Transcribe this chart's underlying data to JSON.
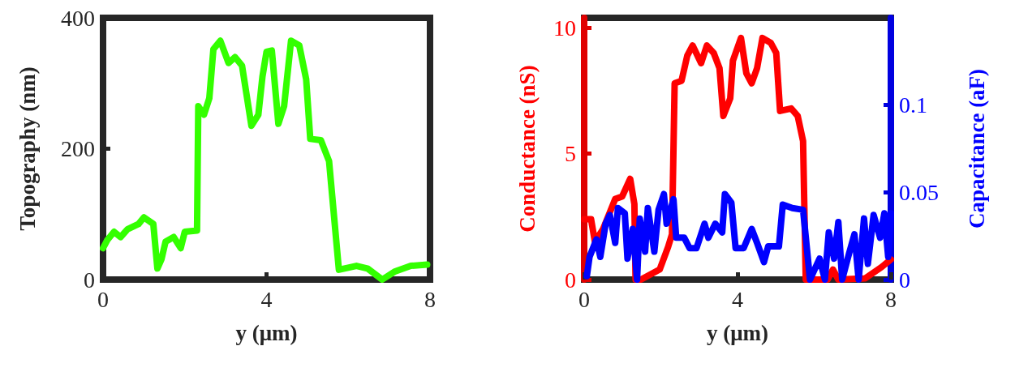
{
  "chart_data": [
    {
      "type": "line",
      "xlabel": "y (μm)",
      "ylabel": "Topography (nm)",
      "xlim": [
        0,
        8
      ],
      "xticks": [
        0,
        4,
        8
      ],
      "ylim": [
        0,
        400
      ],
      "yticks": [
        0,
        200,
        400
      ],
      "color": "#33ff00",
      "x": [
        0,
        0.1,
        0.27,
        0.43,
        0.6,
        0.87,
        1.0,
        1.23,
        1.33,
        1.43,
        1.53,
        1.73,
        1.9,
        2.0,
        2.3,
        2.33,
        2.47,
        2.6,
        2.7,
        2.87,
        3.07,
        3.23,
        3.4,
        3.63,
        3.8,
        3.9,
        4.0,
        4.13,
        4.29,
        4.43,
        4.6,
        4.8,
        4.97,
        5.07,
        5.33,
        5.53,
        5.77,
        6.2,
        6.47,
        6.83,
        7.13,
        7.53,
        7.93
      ],
      "values": [
        48,
        60,
        73,
        65,
        77,
        85,
        95,
        85,
        17,
        31,
        58,
        65,
        48,
        73,
        75,
        265,
        252,
        277,
        352,
        365,
        331,
        340,
        327,
        235,
        252,
        310,
        348,
        350,
        238,
        265,
        365,
        358,
        306,
        215,
        213,
        181,
        15,
        21,
        17,
        0,
        12,
        21,
        23
      ]
    },
    {
      "type": "line",
      "xlabel": "y (μm)",
      "ylabel": "Conductance (nS)",
      "y2label": "Capacitance (aF)",
      "xlim": [
        0,
        8
      ],
      "xticks": [
        0,
        4,
        8
      ],
      "ylim": [
        0,
        10.4
      ],
      "yticks": [
        0,
        5,
        10
      ],
      "y2lim": [
        0,
        0.15
      ],
      "y2ticks": [
        0,
        0.05,
        0.1
      ],
      "series": [
        {
          "color": "#ff0000",
          "x": [
            0,
            0.18,
            0.28,
            0.49,
            0.81,
            0.99,
            1.2,
            1.31,
            1.34,
            1.48,
            1.97,
            2.19,
            2.29,
            2.36,
            2.54,
            2.69,
            2.83,
            3.05,
            3.2,
            3.38,
            3.53,
            3.63,
            3.81,
            3.88,
            4.09,
            4.23,
            4.37,
            4.51,
            4.65,
            4.87,
            5.01,
            5.11,
            5.4,
            5.57,
            5.71,
            5.78,
            6.35,
            6.49,
            6.63,
            7.33,
            7.76,
            8.0
          ],
          "values": [
            2.4,
            2.4,
            1.5,
            2.0,
            3.2,
            3.3,
            4.0,
            3.0,
            0,
            0,
            0.4,
            1.3,
            1.8,
            7.8,
            7.9,
            8.9,
            9.3,
            8.6,
            9.3,
            9.0,
            8.4,
            6.5,
            7.2,
            8.7,
            9.6,
            8.2,
            7.8,
            8.4,
            9.6,
            9.4,
            9.0,
            6.7,
            6.8,
            6.5,
            5.5,
            0,
            0,
            0.4,
            0,
            0.05,
            0.5,
            0.8
          ]
        },
        {
          "color": "#0000ff",
          "axis": "y2",
          "x": [
            0.07,
            0.14,
            0.32,
            0.42,
            0.56,
            0.67,
            0.81,
            0.88,
            1.06,
            1.13,
            1.27,
            1.38,
            1.45,
            1.59,
            1.66,
            1.83,
            1.94,
            2.08,
            2.15,
            2.33,
            2.4,
            2.61,
            2.75,
            2.93,
            3.14,
            3.24,
            3.42,
            3.6,
            3.67,
            3.84,
            3.95,
            4.16,
            4.37,
            4.51,
            4.69,
            4.8,
            5.08,
            5.18,
            5.43,
            5.71,
            5.89,
            6.14,
            6.28,
            6.38,
            6.52,
            6.63,
            6.73,
            6.91,
            7.05,
            7.16,
            7.3,
            7.4,
            7.55,
            7.72,
            7.83,
            7.93,
            8.0
          ],
          "values": [
            0.002,
            0.013,
            0.023,
            0.013,
            0.032,
            0.037,
            0.021,
            0.041,
            0.038,
            0.012,
            0.029,
            0,
            0.035,
            0.016,
            0.041,
            0.016,
            0.04,
            0.049,
            0.032,
            0.046,
            0.024,
            0.024,
            0.018,
            0.018,
            0.032,
            0.024,
            0.032,
            0.027,
            0.049,
            0.044,
            0.018,
            0.018,
            0.029,
            0.021,
            0.01,
            0.019,
            0.019,
            0.043,
            0.041,
            0.04,
            0,
            0.012,
            0,
            0.027,
            0.012,
            0.033,
            0,
            0.015,
            0.026,
            0,
            0.035,
            0.009,
            0.037,
            0.024,
            0.038,
            0.013,
            0.038
          ]
        }
      ]
    }
  ]
}
